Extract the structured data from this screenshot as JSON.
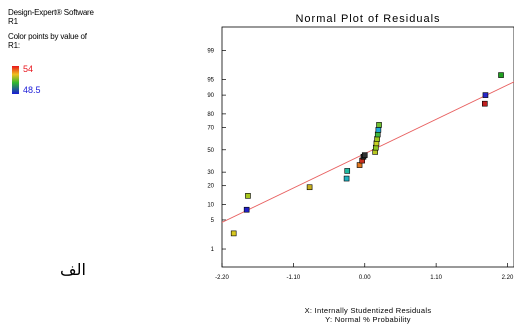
{
  "side_panel": {
    "software": "Design-Expert® Software",
    "response": "R1",
    "color_note": "Color points by value of",
    "color_note_response": "R1:",
    "legend_max": "54",
    "legend_min": "48.5"
  },
  "caption": "الف",
  "chart_data": {
    "type": "scatter",
    "title": "Normal Plot of Residuals",
    "xlabel": "X: Internally Studentized Residuals",
    "ylabel": "Y: Normal % Probability",
    "xlim": [
      -2.2,
      2.3
    ],
    "xticks": [
      "-2.20",
      "-1.10",
      "0.00",
      "1.10",
      "2.20"
    ],
    "yticks": [
      "1",
      "5",
      "10",
      "20",
      "30",
      "50",
      "70",
      "80",
      "90",
      "95",
      "99"
    ],
    "ylim": [
      0.3,
      99.8
    ],
    "yscale": "normal-probability",
    "points": [
      {
        "x": -2.02,
        "y": 2.5,
        "color": "#d8c820"
      },
      {
        "x": -1.82,
        "y": 8.0,
        "color": "#2020c8"
      },
      {
        "x": -1.8,
        "y": 14.0,
        "color": "#a8c820"
      },
      {
        "x": -0.85,
        "y": 19.0,
        "color": "#c8b020"
      },
      {
        "x": -0.28,
        "y": 25.0,
        "color": "#20b0c0"
      },
      {
        "x": -0.27,
        "y": 31.0,
        "color": "#20b8a0"
      },
      {
        "x": -0.08,
        "y": 36.0,
        "color": "#e07820"
      },
      {
        "x": -0.04,
        "y": 40.0,
        "color": "#c83020"
      },
      {
        "x": -0.02,
        "y": 43.5,
        "color": "#202020"
      },
      {
        "x": 0.0,
        "y": 45.0,
        "color": "#303030"
      },
      {
        "x": 0.16,
        "y": 48.0,
        "color": "#b8c820"
      },
      {
        "x": 0.17,
        "y": 52.0,
        "color": "#90c820"
      },
      {
        "x": 0.18,
        "y": 56.0,
        "color": "#c8d020"
      },
      {
        "x": 0.19,
        "y": 60.0,
        "color": "#a0c820"
      },
      {
        "x": 0.2,
        "y": 64.0,
        "color": "#40b840"
      },
      {
        "x": 0.21,
        "y": 68.0,
        "color": "#20a8d8"
      },
      {
        "x": 0.22,
        "y": 72.0,
        "color": "#70c030"
      },
      {
        "x": 1.85,
        "y": 86.0,
        "color": "#c02020"
      },
      {
        "x": 1.86,
        "y": 90.0,
        "color": "#2828c8"
      },
      {
        "x": 2.1,
        "y": 96.0,
        "color": "#20a020"
      }
    ],
    "fit_line": [
      {
        "x": -2.35,
        "y": 3.5
      },
      {
        "x": 2.6,
        "y": 96.5
      }
    ],
    "grid": false,
    "legend": "none"
  }
}
